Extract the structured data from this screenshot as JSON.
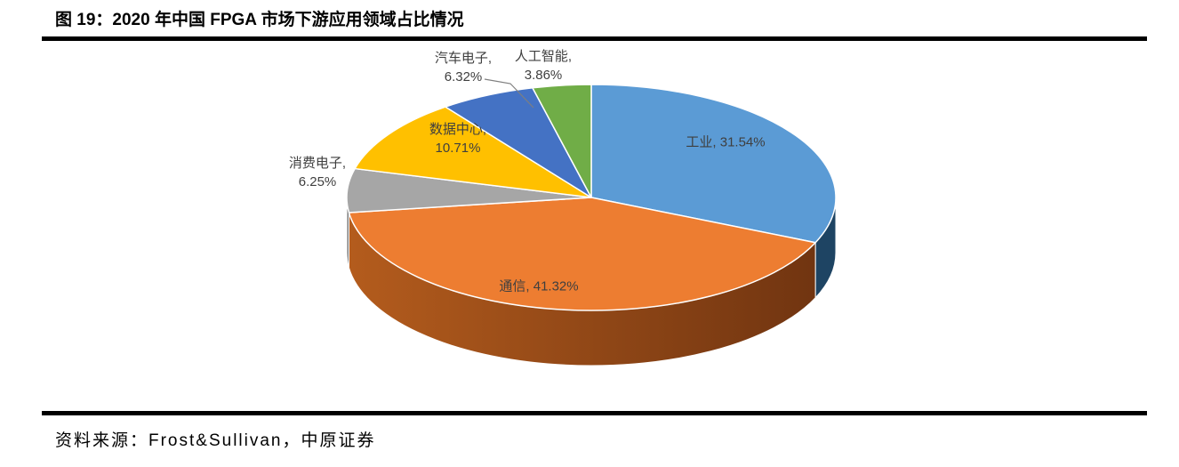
{
  "figure": {
    "title": "图 19：2020 年中国 FPGA 市场下游应用领域占比情况",
    "source": "资料来源：Frost&Sullivan，中原证券"
  },
  "chart_data": {
    "type": "pie",
    "style": "3d",
    "title": "2020 年中国 FPGA 市场下游应用领域占比情况",
    "start_angle_deg": 0,
    "direction": "clockwise",
    "value_unit": "percent",
    "legend": "none",
    "data_label_format": "category, value%",
    "label_color": "#3F3F3F",
    "slice_border_color": "#FFFFFF",
    "leader_line_color": "#7F7F7F",
    "slices": [
      {
        "key": "industrial",
        "label": "工业",
        "value": 31.54,
        "pct_text": "31.54%",
        "color": "#5B9BD5",
        "side_color": "#1E4463"
      },
      {
        "key": "communication",
        "label": "通信",
        "value": 41.32,
        "pct_text": "41.32%",
        "color": "#ED7D31",
        "side_color": [
          "#B45C1D",
          "#6E3310"
        ]
      },
      {
        "key": "consumer-electronics",
        "label": "消费电子",
        "value": 6.25,
        "pct_text": "6.25%",
        "color": "#A6A6A6",
        "side_color": "#7A7A7A"
      },
      {
        "key": "data-center",
        "label": "数据中心",
        "value": 10.71,
        "pct_text": "10.71%",
        "color": "#FFC000",
        "side_color": "#9C7500"
      },
      {
        "key": "automotive-electronics",
        "label": "汽车电子",
        "value": 6.32,
        "pct_text": "6.32%",
        "color": "#4472C4",
        "side_color": "#2A4778"
      },
      {
        "key": "artificial-intelligence",
        "label": "人工智能",
        "value": 3.86,
        "pct_text": "3.86%",
        "color": "#70AD47",
        "side_color": "#45682C"
      }
    ]
  }
}
